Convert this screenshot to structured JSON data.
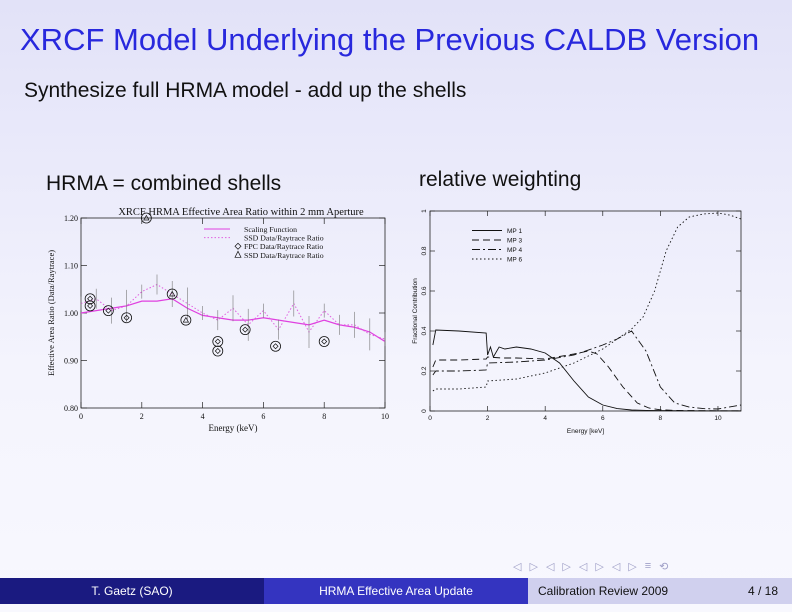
{
  "slide": {
    "title": "XRCF Model Underlying the Previous CALDB Version",
    "subtitle": "Synthesize full HRMA model - add up the shells",
    "left_heading": "HRMA = combined shells",
    "right_heading": "relative weighting"
  },
  "footer": {
    "author": "T. Gaetz  (SAO)",
    "talk": "HRMA Effective Area Update",
    "event": "Calibration Review 2009",
    "page": "4 / 18"
  },
  "nav": [
    "◁",
    "▷",
    "◁",
    "▷",
    "◁",
    "▷",
    "◁",
    "▷",
    "≡",
    "⟲"
  ],
  "colors": {
    "title": "#2828dd",
    "scaling": "#e040e0",
    "ssd": "#e060e0",
    "footer_dark": "#1a1a80",
    "footer_mid": "#3434c0"
  },
  "chart_data": [
    {
      "type": "scatter",
      "title": "XRCF HRMA Effective Area Ratio within 2 mm Aperture",
      "xlabel": "Energy (keV)",
      "ylabel": "Effective Area Ratio (Data/Raytrace)",
      "xlim": [
        0,
        10
      ],
      "ylim": [
        0.8,
        1.2
      ],
      "xticks": [
        0,
        2,
        4,
        6,
        8,
        10
      ],
      "yticks": [
        0.8,
        0.9,
        1.0,
        1.1,
        1.2
      ],
      "legend_position": "top-right",
      "legend": [
        "Scaling Function",
        "SSD Data/Raytrace Ratio",
        "FPC Data/Raytrace Ratio",
        "SSD Data/Raytrace Ratio"
      ],
      "series": [
        {
          "name": "Scaling Function",
          "style": "solid",
          "x": [
            0,
            0.5,
            1,
            1.5,
            2,
            2.5,
            3,
            3.5,
            4,
            4.5,
            5,
            5.5,
            6,
            6.5,
            7,
            7.5,
            8,
            8.5,
            9,
            9.5,
            10
          ],
          "y": [
            1.0,
            1.005,
            1.01,
            1.015,
            1.025,
            1.025,
            1.03,
            1.01,
            0.995,
            0.99,
            0.985,
            0.985,
            0.99,
            0.985,
            0.98,
            0.975,
            0.985,
            0.975,
            0.97,
            0.96,
            0.94
          ]
        },
        {
          "name": "SSD Data/Raytrace Ratio",
          "style": "dotted",
          "x": [
            0,
            0.5,
            1,
            1.5,
            2,
            2.5,
            3,
            3.5,
            4,
            4.5,
            5,
            5.5,
            6,
            6.5,
            7,
            7.5,
            8,
            8.5,
            9,
            9.5,
            10
          ],
          "y": [
            1.02,
            1.03,
            1.005,
            1.015,
            1.045,
            1.06,
            1.04,
            1.02,
            1.0,
            0.985,
            1.01,
            0.975,
            1.005,
            0.965,
            1.02,
            0.96,
            1.005,
            0.975,
            0.975,
            0.955,
            0.945
          ]
        },
        {
          "name": "FPC Data/Raytrace Ratio",
          "marker": "diamond",
          "x": [
            0.3,
            0.3,
            0.9,
            1.5,
            4.5,
            4.5,
            5.4,
            6.4,
            8.0
          ],
          "y": [
            1.03,
            1.015,
            1.005,
            0.99,
            0.94,
            0.92,
            0.965,
            0.93,
            0.94
          ]
        },
        {
          "name": "SSD Data/Raytrace Ratio",
          "marker": "triangle",
          "x": [
            2.15,
            3.0,
            3.45
          ],
          "y": [
            1.2,
            1.04,
            0.985
          ]
        }
      ]
    },
    {
      "type": "line",
      "title": "",
      "xlabel": "Energy [keV]",
      "ylabel": "Fractional Contribution",
      "xlim": [
        0,
        10.8
      ],
      "ylim": [
        0,
        1
      ],
      "xticks": [
        0,
        2,
        4,
        6,
        8,
        10
      ],
      "yticks": [
        0,
        0.2,
        0.4,
        0.6,
        0.8,
        1
      ],
      "legend_position": "top-center",
      "series": [
        {
          "name": "MP 1",
          "style": "solid",
          "x": [
            0.1,
            0.2,
            1.0,
            1.95,
            2.0,
            2.1,
            2.2,
            2.4,
            2.6,
            3.0,
            3.5,
            4.0,
            4.5,
            5.0,
            5.5,
            6.0,
            6.5,
            7.0,
            7.5,
            8.0,
            9.0,
            10.0,
            10.8
          ],
          "y": [
            0.33,
            0.405,
            0.4,
            0.39,
            0.28,
            0.32,
            0.27,
            0.32,
            0.31,
            0.32,
            0.31,
            0.29,
            0.24,
            0.15,
            0.07,
            0.03,
            0.012,
            0.005,
            0.003,
            0.002,
            0.001,
            0.001,
            0.001
          ]
        },
        {
          "name": "MP 3",
          "style": "dashed",
          "x": [
            0.1,
            0.2,
            1.0,
            1.95,
            2.0,
            2.5,
            3.0,
            4.0,
            5.0,
            5.5,
            5.8,
            6.2,
            6.7,
            7.2,
            7.6,
            8.0,
            8.5,
            9.0,
            10.0,
            10.8
          ],
          "y": [
            0.22,
            0.255,
            0.255,
            0.26,
            0.27,
            0.265,
            0.265,
            0.26,
            0.285,
            0.3,
            0.285,
            0.22,
            0.12,
            0.04,
            0.015,
            0.006,
            0.003,
            0.002,
            0.001,
            0.001
          ]
        },
        {
          "name": "MP 4",
          "style": "dashdot",
          "x": [
            0.1,
            0.2,
            1.0,
            1.95,
            2.0,
            3.0,
            4.0,
            5.0,
            6.0,
            6.5,
            7.0,
            7.5,
            8.0,
            8.5,
            9.0,
            9.5,
            10.0,
            10.8
          ],
          "y": [
            0.18,
            0.2,
            0.2,
            0.205,
            0.24,
            0.245,
            0.255,
            0.28,
            0.33,
            0.36,
            0.4,
            0.3,
            0.12,
            0.04,
            0.02,
            0.012,
            0.01,
            0.03
          ]
        },
        {
          "name": "MP 6",
          "style": "dotted",
          "x": [
            0.1,
            0.2,
            1.0,
            1.95,
            2.0,
            3.0,
            4.0,
            5.0,
            6.0,
            7.0,
            7.4,
            7.8,
            8.2,
            8.6,
            9.0,
            9.5,
            10.0,
            10.4,
            10.8
          ],
          "y": [
            0.1,
            0.11,
            0.11,
            0.12,
            0.15,
            0.16,
            0.19,
            0.24,
            0.31,
            0.41,
            0.47,
            0.6,
            0.8,
            0.92,
            0.97,
            0.985,
            0.99,
            0.98,
            0.96
          ]
        }
      ]
    }
  ]
}
